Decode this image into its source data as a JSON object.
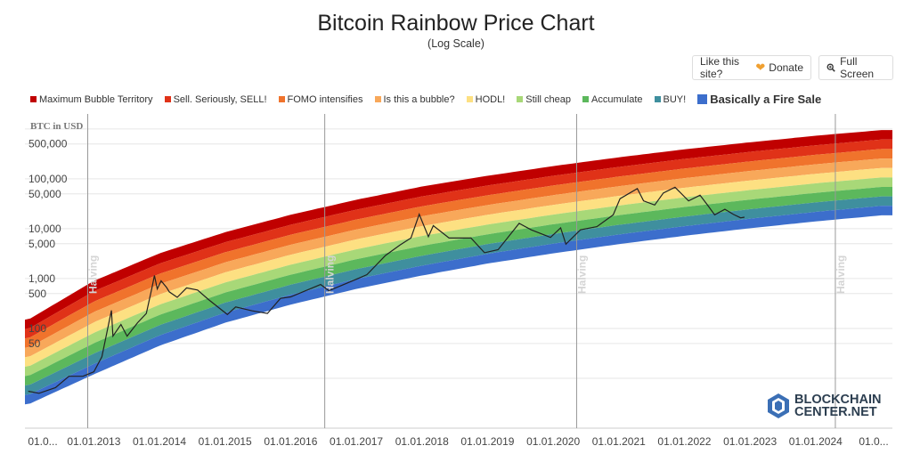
{
  "header": {
    "title": "Bitcoin Rainbow Price Chart",
    "subtitle": "(Log Scale)"
  },
  "buttons": {
    "like_label": "Like this site?",
    "donate_label": "Donate",
    "fullscreen_label": "Full Screen"
  },
  "logo": {
    "line1": "BLOCKCHAIN",
    "line2": "CENTER.NET"
  },
  "chart_data": {
    "type": "area",
    "title": "Bitcoin Rainbow Price Chart",
    "subtitle": "(Log Scale)",
    "ylabel": "BTC in USD",
    "xlabel": "",
    "y_scale": "log",
    "grid": true,
    "legend_position": "top-left",
    "x_tick_labels": [
      "01.0...",
      "01.01.2013",
      "01.01.2014",
      "01.01.2015",
      "01.01.2016",
      "01.01.2017",
      "01.01.2018",
      "01.01.2019",
      "01.01.2020",
      "01.01.2021",
      "01.01.2022",
      "01.01.2023",
      "01.01.2024",
      "01.0..."
    ],
    "y_tick_labels": [
      "500,000",
      "100,000",
      "50,000",
      "10,000",
      "5,000",
      "1,000",
      "500",
      "100",
      "50"
    ],
    "y_tick_values": [
      500000,
      100000,
      50000,
      10000,
      5000,
      1000,
      500,
      100,
      50
    ],
    "ylim": [
      1,
      2000000
    ],
    "vertical_markers": [
      {
        "label": "Halving",
        "date": "2012-11-28"
      },
      {
        "label": "Halving",
        "date": "2016-07-09"
      },
      {
        "label": "Halving",
        "date": "2020-05-11"
      },
      {
        "label": "Halving",
        "date": "2024-04-20"
      }
    ],
    "bands": [
      {
        "name": "Maximum Bubble Territory",
        "color": "#c00000"
      },
      {
        "name": "Sell. Seriously, SELL!",
        "color": "#e03218"
      },
      {
        "name": "FOMO intensifies",
        "color": "#f0732c"
      },
      {
        "name": "Is this a bubble?",
        "color": "#f8a85a"
      },
      {
        "name": "HODL!",
        "color": "#fde082"
      },
      {
        "name": "Still cheap",
        "color": "#a8d878"
      },
      {
        "name": "Accumulate",
        "color": "#5cb85c"
      },
      {
        "name": "BUY!",
        "color": "#3f8f9e"
      },
      {
        "name": "Basically a Fire Sale",
        "color": "#3c6ecc"
      }
    ],
    "band_bounds_top_usd": [
      {
        "date": "2012-01-01",
        "upper": 150
      },
      {
        "date": "2013-01-01",
        "upper": 900
      },
      {
        "date": "2014-01-01",
        "upper": 3200
      },
      {
        "date": "2015-01-01",
        "upper": 8500
      },
      {
        "date": "2016-01-01",
        "upper": 19000
      },
      {
        "date": "2017-01-01",
        "upper": 38000
      },
      {
        "date": "2018-01-01",
        "upper": 70000
      },
      {
        "date": "2019-01-01",
        "upper": 115000
      },
      {
        "date": "2020-01-01",
        "upper": 180000
      },
      {
        "date": "2021-01-01",
        "upper": 270000
      },
      {
        "date": "2022-01-01",
        "upper": 390000
      },
      {
        "date": "2023-01-01",
        "upper": 540000
      },
      {
        "date": "2024-01-01",
        "upper": 730000
      },
      {
        "date": "2025-01-01",
        "upper": 950000
      }
    ],
    "band_bounds_bottom_usd": [
      {
        "date": "2012-01-01",
        "lower": 3
      },
      {
        "date": "2013-01-01",
        "lower": 12
      },
      {
        "date": "2014-01-01",
        "lower": 45
      },
      {
        "date": "2015-01-01",
        "lower": 130
      },
      {
        "date": "2016-01-01",
        "lower": 300
      },
      {
        "date": "2017-01-01",
        "lower": 620
      },
      {
        "date": "2018-01-01",
        "lower": 1150
      },
      {
        "date": "2019-01-01",
        "lower": 2000
      },
      {
        "date": "2020-01-01",
        "lower": 3200
      },
      {
        "date": "2021-01-01",
        "lower": 4900
      },
      {
        "date": "2022-01-01",
        "lower": 7200
      },
      {
        "date": "2023-01-01",
        "lower": 10200
      },
      {
        "date": "2024-01-01",
        "lower": 14000
      },
      {
        "date": "2025-01-01",
        "lower": 18500
      }
    ],
    "series": [
      {
        "color": "#222222",
        "points": [
          [
            "2012-01-01",
            5.5
          ],
          [
            "2012-03-01",
            5
          ],
          [
            "2012-06-01",
            6.5
          ],
          [
            "2012-08-15",
            11
          ],
          [
            "2012-11-01",
            11
          ],
          [
            "2013-01-01",
            13.5
          ],
          [
            "2013-02-15",
            27
          ],
          [
            "2013-04-09",
            230
          ],
          [
            "2013-04-17",
            70
          ],
          [
            "2013-06-01",
            120
          ],
          [
            "2013-07-05",
            70
          ],
          [
            "2013-09-01",
            130
          ],
          [
            "2013-10-20",
            200
          ],
          [
            "2013-11-20",
            650
          ],
          [
            "2013-12-04",
            1150
          ],
          [
            "2013-12-20",
            620
          ],
          [
            "2014-01-10",
            900
          ],
          [
            "2014-02-10",
            660
          ],
          [
            "2014-02-25",
            540
          ],
          [
            "2014-04-10",
            420
          ],
          [
            "2014-06-01",
            650
          ],
          [
            "2014-08-01",
            590
          ],
          [
            "2014-10-01",
            380
          ],
          [
            "2015-01-14",
            190
          ],
          [
            "2015-03-01",
            270
          ],
          [
            "2015-06-01",
            225
          ],
          [
            "2015-08-25",
            200
          ],
          [
            "2015-11-05",
            400
          ],
          [
            "2016-01-01",
            430
          ],
          [
            "2016-06-16",
            760
          ],
          [
            "2016-08-01",
            570
          ],
          [
            "2017-01-01",
            970
          ],
          [
            "2017-03-01",
            1200
          ],
          [
            "2017-06-12",
            2900
          ],
          [
            "2017-09-01",
            4700
          ],
          [
            "2017-11-01",
            6500
          ],
          [
            "2017-12-17",
            19500
          ],
          [
            "2018-02-06",
            6900
          ],
          [
            "2018-03-05",
            11500
          ],
          [
            "2018-06-01",
            6500
          ],
          [
            "2018-10-01",
            6500
          ],
          [
            "2018-12-15",
            3300
          ],
          [
            "2019-03-01",
            3800
          ],
          [
            "2019-06-26",
            12800
          ],
          [
            "2019-09-01",
            9500
          ],
          [
            "2019-12-17",
            6700
          ],
          [
            "2020-02-12",
            10400
          ],
          [
            "2020-03-12",
            4900
          ],
          [
            "2020-06-01",
            9500
          ],
          [
            "2020-09-01",
            11000
          ],
          [
            "2020-12-01",
            19000
          ],
          [
            "2021-01-08",
            40000
          ],
          [
            "2021-04-14",
            63500
          ],
          [
            "2021-05-19",
            36000
          ],
          [
            "2021-07-20",
            29800
          ],
          [
            "2021-09-06",
            52000
          ],
          [
            "2021-11-10",
            68000
          ],
          [
            "2022-01-24",
            36000
          ],
          [
            "2022-03-29",
            47000
          ],
          [
            "2022-05-12",
            29000
          ],
          [
            "2022-06-18",
            19000
          ],
          [
            "2022-08-14",
            24500
          ],
          [
            "2022-10-01",
            19300
          ],
          [
            "2022-11-10",
            16500
          ],
          [
            "2022-12-01",
            17000
          ]
        ]
      }
    ]
  }
}
